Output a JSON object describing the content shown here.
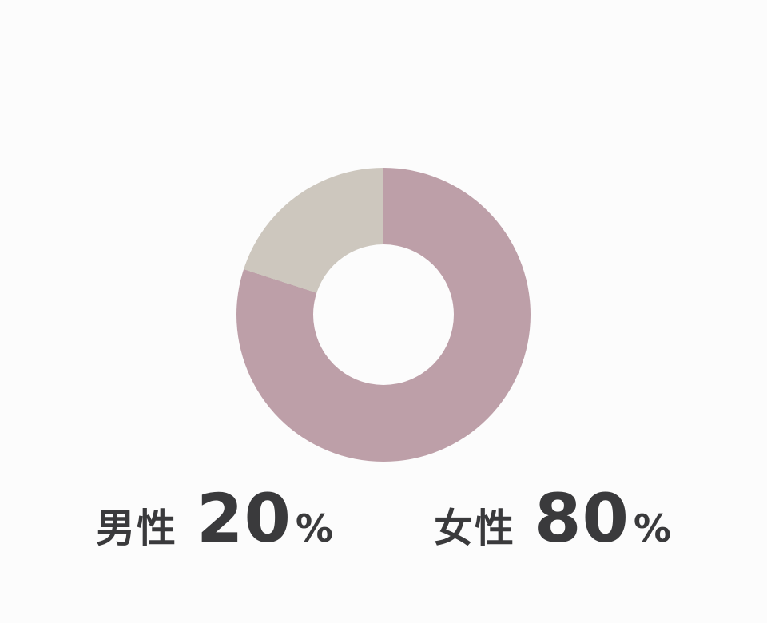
{
  "page": {
    "background_color": "#fcfcfc",
    "text_color": "#3a3a3c"
  },
  "chart_data": {
    "type": "pie",
    "subtype": "donut",
    "title": "",
    "start_angle_deg": 0,
    "direction": "clockwise",
    "inner_radius_ratio": 0.48,
    "hole_color": "#fcfcfc",
    "legend_position": "bottom",
    "slices": [
      {
        "label": "女性",
        "value": 80,
        "unit": "%",
        "color": "#bd9fa8"
      },
      {
        "label": "男性",
        "value": 20,
        "unit": "%",
        "color": "#cdc7be"
      }
    ]
  },
  "legend": {
    "items": [
      {
        "label": "男性",
        "value": "20",
        "unit": "%",
        "color": "#cdc7be"
      },
      {
        "label": "女性",
        "value": "80",
        "unit": "%",
        "color": "#bd9fa8"
      }
    ]
  }
}
